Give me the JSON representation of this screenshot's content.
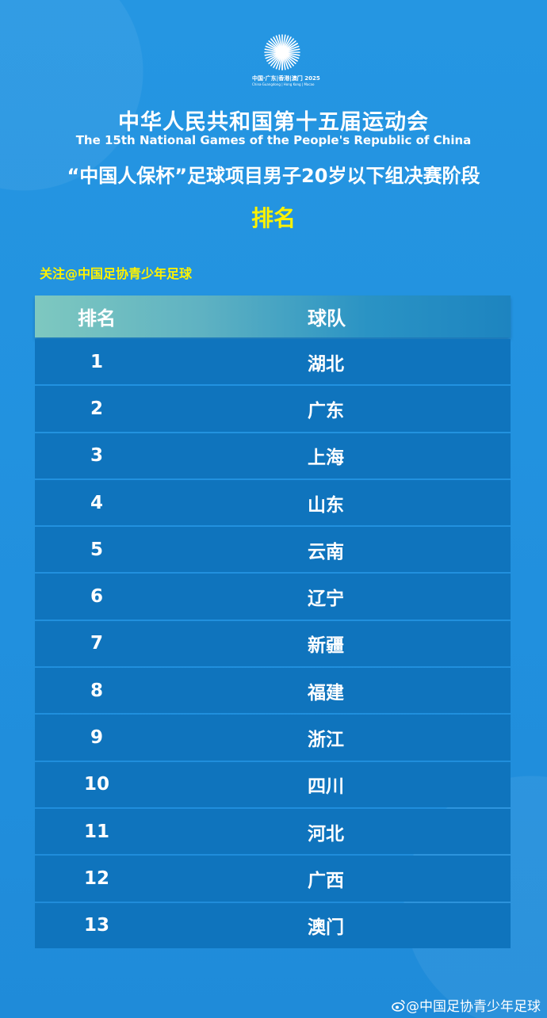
{
  "logo": {
    "line1": "中国·广东|香港|澳门 2025",
    "line2": "China·Guangdong | Hong Kong | Macao"
  },
  "header": {
    "title_cn": "中华人民共和国第十五届运动会",
    "title_en": "The 15th National Games of the People's Republic of China",
    "subtitle": "“中国人保杯”足球项目男子20岁以下组决赛阶段",
    "heading": "排名"
  },
  "follow_text": "关注@中国足协青少年足球",
  "table": {
    "columns": [
      "排名",
      "球队"
    ],
    "rows": [
      {
        "rank": "1",
        "team": "湖北"
      },
      {
        "rank": "2",
        "team": "广东"
      },
      {
        "rank": "3",
        "team": "上海"
      },
      {
        "rank": "4",
        "team": "山东"
      },
      {
        "rank": "5",
        "team": "云南"
      },
      {
        "rank": "6",
        "team": "辽宁"
      },
      {
        "rank": "7",
        "team": "新疆"
      },
      {
        "rank": "8",
        "team": "福建"
      },
      {
        "rank": "9",
        "team": "浙江"
      },
      {
        "rank": "10",
        "team": "四川"
      },
      {
        "rank": "11",
        "team": "河北"
      },
      {
        "rank": "12",
        "team": "广西"
      },
      {
        "rank": "13",
        "team": "澳门"
      }
    ]
  },
  "watermark": {
    "icon": "weibo-icon",
    "text": "@中国足协青少年足球"
  },
  "colors": {
    "background": "#2596e2",
    "row": "#0f74bd",
    "highlight": "#fff200"
  }
}
